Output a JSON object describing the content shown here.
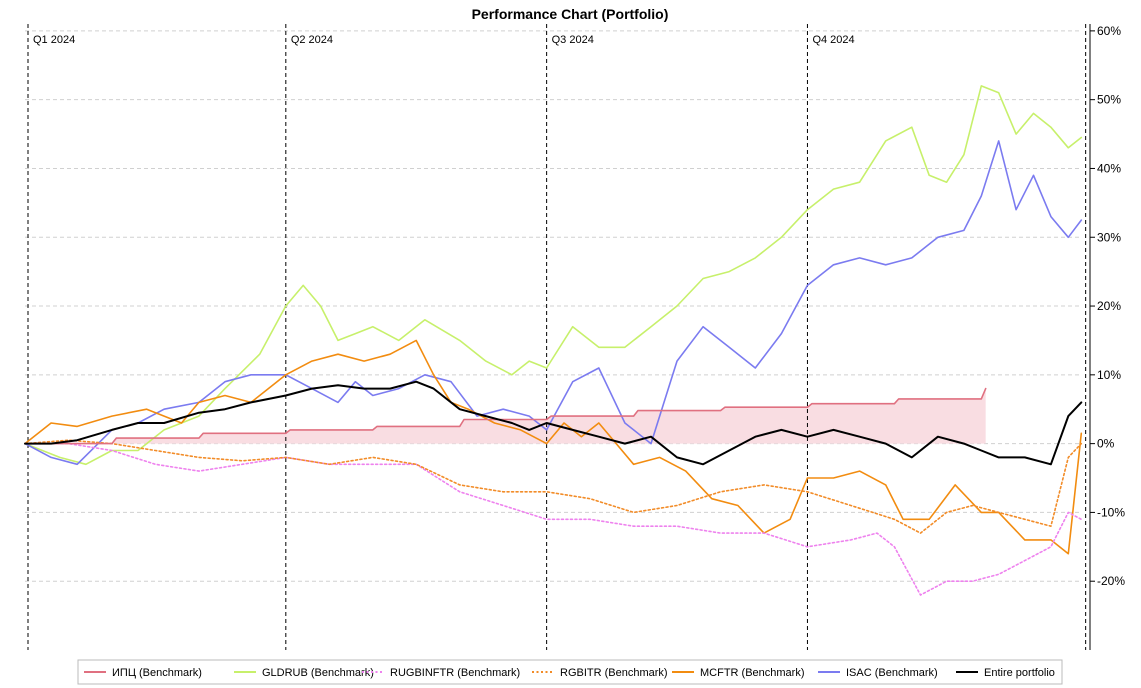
{
  "chart_data": {
    "type": "line",
    "title": "Performance Chart (Portfolio)",
    "ylim": [
      -30,
      61
    ],
    "xlim": [
      0,
      12.25
    ],
    "y_ticks": [
      -20,
      -10,
      0,
      10,
      20,
      30,
      40,
      50,
      60
    ],
    "y_tick_labels": [
      "-20%",
      "-10%",
      "0%",
      "10%",
      "20%",
      "30%",
      "40%",
      "50%",
      "60%"
    ],
    "quarter_markers": [
      {
        "label": "Q1 2024",
        "x": 0
      },
      {
        "label": "Q2 2024",
        "x": 3
      },
      {
        "label": "Q3 2024",
        "x": 6
      },
      {
        "label": "Q4 2024",
        "x": 9
      },
      {
        "label": "",
        "x": 12.2
      }
    ],
    "grid": true,
    "legend_position": "bottom",
    "series": [
      {
        "name": "ИПЦ (Benchmark)",
        "color": "#e07080",
        "style": "solid",
        "fill": "#f9dde2",
        "x": [
          0,
          1,
          1.05,
          2,
          2.05,
          3,
          3.05,
          4,
          4.05,
          5,
          5.05,
          6,
          6.05,
          7,
          7.05,
          8,
          8.05,
          9,
          9.05,
          10,
          10.05,
          11,
          11.05
        ],
        "values": [
          0,
          0,
          0.8,
          0.8,
          1.5,
          1.5,
          2,
          2,
          2.5,
          2.5,
          3.5,
          3.5,
          4,
          4,
          4.8,
          4.8,
          5.3,
          5.3,
          5.8,
          5.8,
          6.5,
          6.5,
          8
        ]
      },
      {
        "name": "GLDRUB (Benchmark)",
        "color": "#c7f06b",
        "style": "solid",
        "x": [
          0,
          0.4,
          0.7,
          1,
          1.3,
          1.6,
          2,
          2.3,
          2.7,
          3,
          3.2,
          3.4,
          3.6,
          3.8,
          4,
          4.3,
          4.6,
          5,
          5.3,
          5.6,
          5.8,
          6,
          6.3,
          6.6,
          6.9,
          7.2,
          7.5,
          7.8,
          8.1,
          8.4,
          8.7,
          9,
          9.3,
          9.6,
          9.9,
          10.2,
          10.4,
          10.6,
          10.8,
          11,
          11.2,
          11.4,
          11.6,
          11.8,
          12,
          12.15
        ],
        "values": [
          0,
          -2,
          -3,
          -1,
          -1,
          2,
          4,
          8,
          13,
          20,
          23,
          20,
          15,
          16,
          17,
          15,
          18,
          15,
          12,
          10,
          12,
          11,
          17,
          14,
          14,
          17,
          20,
          24,
          25,
          27,
          30,
          34,
          37,
          38,
          44,
          46,
          39,
          38,
          42,
          52,
          51,
          45,
          48,
          46,
          43,
          44.5
        ]
      },
      {
        "name": "RUGBINFTR (Benchmark)",
        "color": "#ee82ee",
        "style": "dotted",
        "x": [
          0,
          0.5,
          1,
          1.5,
          2,
          2.5,
          3,
          3.5,
          4,
          4.5,
          5,
          5.5,
          6,
          6.5,
          7,
          7.5,
          8,
          8.5,
          9,
          9.5,
          9.8,
          10,
          10.3,
          10.6,
          10.9,
          11.2,
          11.5,
          11.8,
          12,
          12.15
        ],
        "values": [
          0,
          0,
          -1,
          -3,
          -4,
          -3,
          -2,
          -3,
          -3,
          -3,
          -7,
          -9,
          -11,
          -11,
          -12,
          -12,
          -13,
          -13,
          -15,
          -14,
          -13,
          -15,
          -22,
          -20,
          -20,
          -19,
          -17,
          -15,
          -10,
          -11
        ]
      },
      {
        "name": "RGBITR (Benchmark)",
        "color": "#f28c28",
        "style": "dotted",
        "x": [
          0,
          0.5,
          1,
          1.5,
          2,
          2.5,
          3,
          3.5,
          4,
          4.5,
          5,
          5.5,
          6,
          6.5,
          7,
          7.5,
          8,
          8.5,
          9,
          9.5,
          10,
          10.3,
          10.6,
          10.9,
          11.2,
          11.5,
          11.8,
          12,
          12.15
        ],
        "values": [
          0,
          0.5,
          0,
          -1,
          -2,
          -2.5,
          -2,
          -3,
          -2,
          -3,
          -6,
          -7,
          -7,
          -8,
          -10,
          -9,
          -7,
          -6,
          -7,
          -9,
          -11,
          -13,
          -10,
          -9,
          -10,
          -11,
          -12,
          -2,
          0
        ]
      },
      {
        "name": "MCFTR (Benchmark)",
        "color": "#f28c10",
        "style": "solid",
        "x": [
          0,
          0.3,
          0.6,
          1,
          1.4,
          1.8,
          2,
          2.3,
          2.6,
          3,
          3.3,
          3.6,
          3.9,
          4.2,
          4.5,
          4.7,
          4.9,
          5.1,
          5.4,
          5.7,
          6,
          6.2,
          6.4,
          6.6,
          6.8,
          7,
          7.3,
          7.6,
          7.9,
          8.2,
          8.5,
          8.8,
          9,
          9.3,
          9.6,
          9.9,
          10.1,
          10.4,
          10.7,
          11,
          11.2,
          11.5,
          11.8,
          12,
          12.15
        ],
        "values": [
          0,
          3,
          2.5,
          4,
          5,
          3,
          6,
          7,
          6,
          10,
          12,
          13,
          12,
          13,
          15,
          10,
          6,
          5,
          3,
          2,
          0,
          3,
          1,
          3,
          0,
          -3,
          -2,
          -4,
          -8,
          -9,
          -13,
          -11,
          -5,
          -5,
          -4,
          -6,
          -11,
          -11,
          -6,
          -10,
          -10,
          -14,
          -14,
          -16,
          1.5
        ]
      },
      {
        "name": "ISAC (Benchmark)",
        "color": "#7b7bf0",
        "style": "solid",
        "x": [
          0,
          0.3,
          0.6,
          1,
          1.3,
          1.6,
          2,
          2.3,
          2.6,
          3,
          3.3,
          3.6,
          3.8,
          4,
          4.3,
          4.6,
          4.9,
          5.2,
          5.5,
          5.8,
          6,
          6.3,
          6.6,
          6.9,
          7.2,
          7.5,
          7.8,
          8.1,
          8.4,
          8.7,
          9,
          9.3,
          9.6,
          9.9,
          10.2,
          10.5,
          10.8,
          11,
          11.2,
          11.4,
          11.6,
          11.8,
          12,
          12.15
        ],
        "values": [
          0,
          -2,
          -3,
          2,
          3,
          5,
          6,
          9,
          10,
          10,
          8,
          6,
          9,
          7,
          8,
          10,
          9,
          4,
          5,
          4,
          2,
          9,
          11,
          3,
          0,
          12,
          17,
          14,
          11,
          16,
          23,
          26,
          27,
          26,
          27,
          30,
          31,
          36,
          44,
          34,
          39,
          33,
          30,
          32.5
        ]
      },
      {
        "name": "Entire portfolio",
        "color": "#000000",
        "style": "solid",
        "x": [
          0,
          0.3,
          0.6,
          1,
          1.3,
          1.6,
          2,
          2.3,
          2.6,
          3,
          3.3,
          3.6,
          3.9,
          4.2,
          4.5,
          4.7,
          5,
          5.3,
          5.6,
          5.8,
          6,
          6.3,
          6.6,
          6.9,
          7.2,
          7.5,
          7.8,
          8.1,
          8.4,
          8.7,
          9,
          9.3,
          9.6,
          9.9,
          10.2,
          10.5,
          10.8,
          11,
          11.2,
          11.5,
          11.8,
          12,
          12.15
        ],
        "values": [
          0,
          0,
          0.5,
          2,
          3,
          3,
          4.5,
          5,
          6,
          7,
          8,
          8.5,
          8,
          8,
          9,
          8,
          5,
          4,
          3,
          2,
          3,
          2,
          1,
          0,
          1,
          -2,
          -3,
          -1,
          1,
          2,
          1,
          2,
          1,
          0,
          -2,
          1,
          0,
          -1,
          -2,
          -2,
          -3,
          4,
          6
        ]
      }
    ]
  }
}
